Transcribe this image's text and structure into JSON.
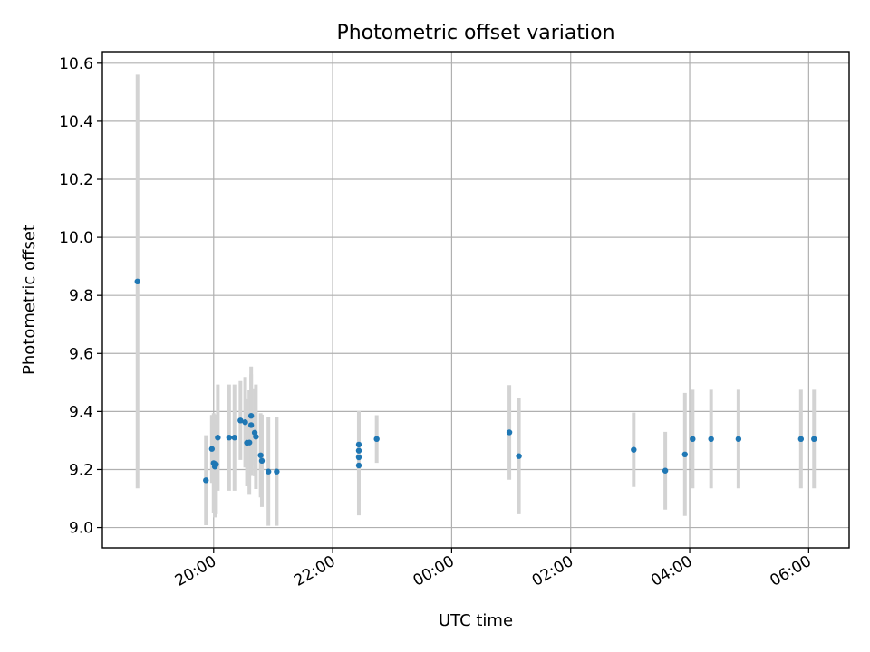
{
  "chart_data": {
    "type": "scatter",
    "title": "Photometric offset variation",
    "xlabel": "UTC time",
    "ylabel": "Photometric offset",
    "x_tick_labels": [
      "20:00",
      "22:00",
      "00:00",
      "02:00",
      "04:00",
      "06:00"
    ],
    "x_tick_hours": [
      20,
      22,
      24,
      26,
      28,
      30
    ],
    "y_tick_labels": [
      "9.0",
      "9.2",
      "9.4",
      "9.6",
      "9.8",
      "10.0",
      "10.2",
      "10.4",
      "10.6"
    ],
    "y_ticks": [
      9.0,
      9.2,
      9.4,
      9.6,
      9.8,
      10.0,
      10.2,
      10.4,
      10.6
    ],
    "xlim_hours": [
      18.13,
      30.68
    ],
    "ylim": [
      8.93,
      10.64
    ],
    "grid": true,
    "marker_color": "#1f77b4",
    "errorbar_color": "#d3d3d3",
    "frame_color": "#000000",
    "grid_color": "#b0b0b0",
    "points": [
      {
        "t": 18.72,
        "y": 9.848,
        "err": 0.713
      },
      {
        "t": 19.87,
        "y": 9.163,
        "err": 0.155
      },
      {
        "t": 19.97,
        "y": 9.271,
        "err": 0.117
      },
      {
        "t": 20.0,
        "y": 9.222,
        "err": 0.172
      },
      {
        "t": 20.02,
        "y": 9.21,
        "err": 0.175
      },
      {
        "t": 20.04,
        "y": 9.218,
        "err": 0.172
      },
      {
        "t": 20.07,
        "y": 9.31,
        "err": 0.183
      },
      {
        "t": 20.26,
        "y": 9.31,
        "err": 0.183
      },
      {
        "t": 20.35,
        "y": 9.31,
        "err": 0.183
      },
      {
        "t": 20.45,
        "y": 9.369,
        "err": 0.136
      },
      {
        "t": 20.53,
        "y": 9.363,
        "err": 0.156
      },
      {
        "t": 20.56,
        "y": 9.292,
        "err": 0.15
      },
      {
        "t": 20.6,
        "y": 9.293,
        "err": 0.18
      },
      {
        "t": 20.63,
        "y": 9.385,
        "err": 0.17
      },
      {
        "t": 20.63,
        "y": 9.353,
        "err": 0.175
      },
      {
        "t": 20.69,
        "y": 9.327,
        "err": 0.15
      },
      {
        "t": 20.71,
        "y": 9.313,
        "err": 0.18
      },
      {
        "t": 20.79,
        "y": 9.249,
        "err": 0.145
      },
      {
        "t": 20.81,
        "y": 9.23,
        "err": 0.159
      },
      {
        "t": 20.92,
        "y": 9.193,
        "err": 0.187
      },
      {
        "t": 21.06,
        "y": 9.193,
        "err": 0.187
      },
      {
        "t": 22.44,
        "y": 9.286,
        "err": 0.115
      },
      {
        "t": 22.44,
        "y": 9.265,
        "err": 0.13
      },
      {
        "t": 22.44,
        "y": 9.242,
        "err": 0.15
      },
      {
        "t": 22.44,
        "y": 9.214,
        "err": 0.172
      },
      {
        "t": 22.74,
        "y": 9.305,
        "err": 0.082
      },
      {
        "t": 24.97,
        "y": 9.328,
        "err": 0.163
      },
      {
        "t": 25.13,
        "y": 9.246,
        "err": 0.2
      },
      {
        "t": 27.06,
        "y": 9.268,
        "err": 0.128
      },
      {
        "t": 27.59,
        "y": 9.196,
        "err": 0.134
      },
      {
        "t": 27.92,
        "y": 9.252,
        "err": 0.212
      },
      {
        "t": 28.05,
        "y": 9.305,
        "err": 0.17
      },
      {
        "t": 28.36,
        "y": 9.305,
        "err": 0.17
      },
      {
        "t": 28.82,
        "y": 9.305,
        "err": 0.17
      },
      {
        "t": 29.87,
        "y": 9.305,
        "err": 0.17
      },
      {
        "t": 30.09,
        "y": 9.305,
        "err": 0.17
      }
    ]
  }
}
